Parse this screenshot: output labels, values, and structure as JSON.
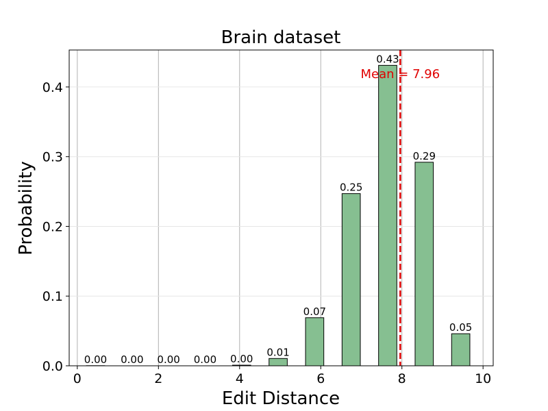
{
  "chart_data": {
    "type": "bar",
    "title": "Brain dataset",
    "xlabel": "Edit Distance",
    "ylabel": "Probability",
    "xlim": [
      -0.2,
      10.25
    ],
    "ylim": [
      0,
      0.453
    ],
    "xticks": [
      0,
      2,
      4,
      6,
      8,
      10
    ],
    "yticks": [
      0.0,
      0.1,
      0.2,
      0.3,
      0.4
    ],
    "xtick_labels": [
      "0",
      "2",
      "4",
      "6",
      "8",
      "10"
    ],
    "ytick_labels": [
      "0.0",
      "0.1",
      "0.2",
      "0.3",
      "0.4"
    ],
    "bar_width": 0.45,
    "x": [
      0.45,
      1.35,
      2.25,
      3.15,
      4.05,
      4.95,
      5.85,
      6.75,
      7.65,
      8.55,
      9.45
    ],
    "values": [
      0.0002,
      0.0,
      0.0,
      0.0,
      0.0009,
      0.0105,
      0.069,
      0.247,
      0.431,
      0.292,
      0.046
    ],
    "value_labels": [
      "0.00",
      "0.00",
      "0.00",
      "0.00",
      "0.00",
      "0.01",
      "0.07",
      "0.25",
      "0.43",
      "0.29",
      "0.05"
    ],
    "mean": 7.96,
    "mean_label": "Mean = 7.96",
    "grid": true,
    "colors": {
      "bar_fill": "#86bf91",
      "bar_edge": "#000000",
      "mean_line": "#e00000",
      "mean_text": "#e00000",
      "grid_x": "#b0b0b0",
      "grid_y": "#e6e6e6"
    }
  }
}
